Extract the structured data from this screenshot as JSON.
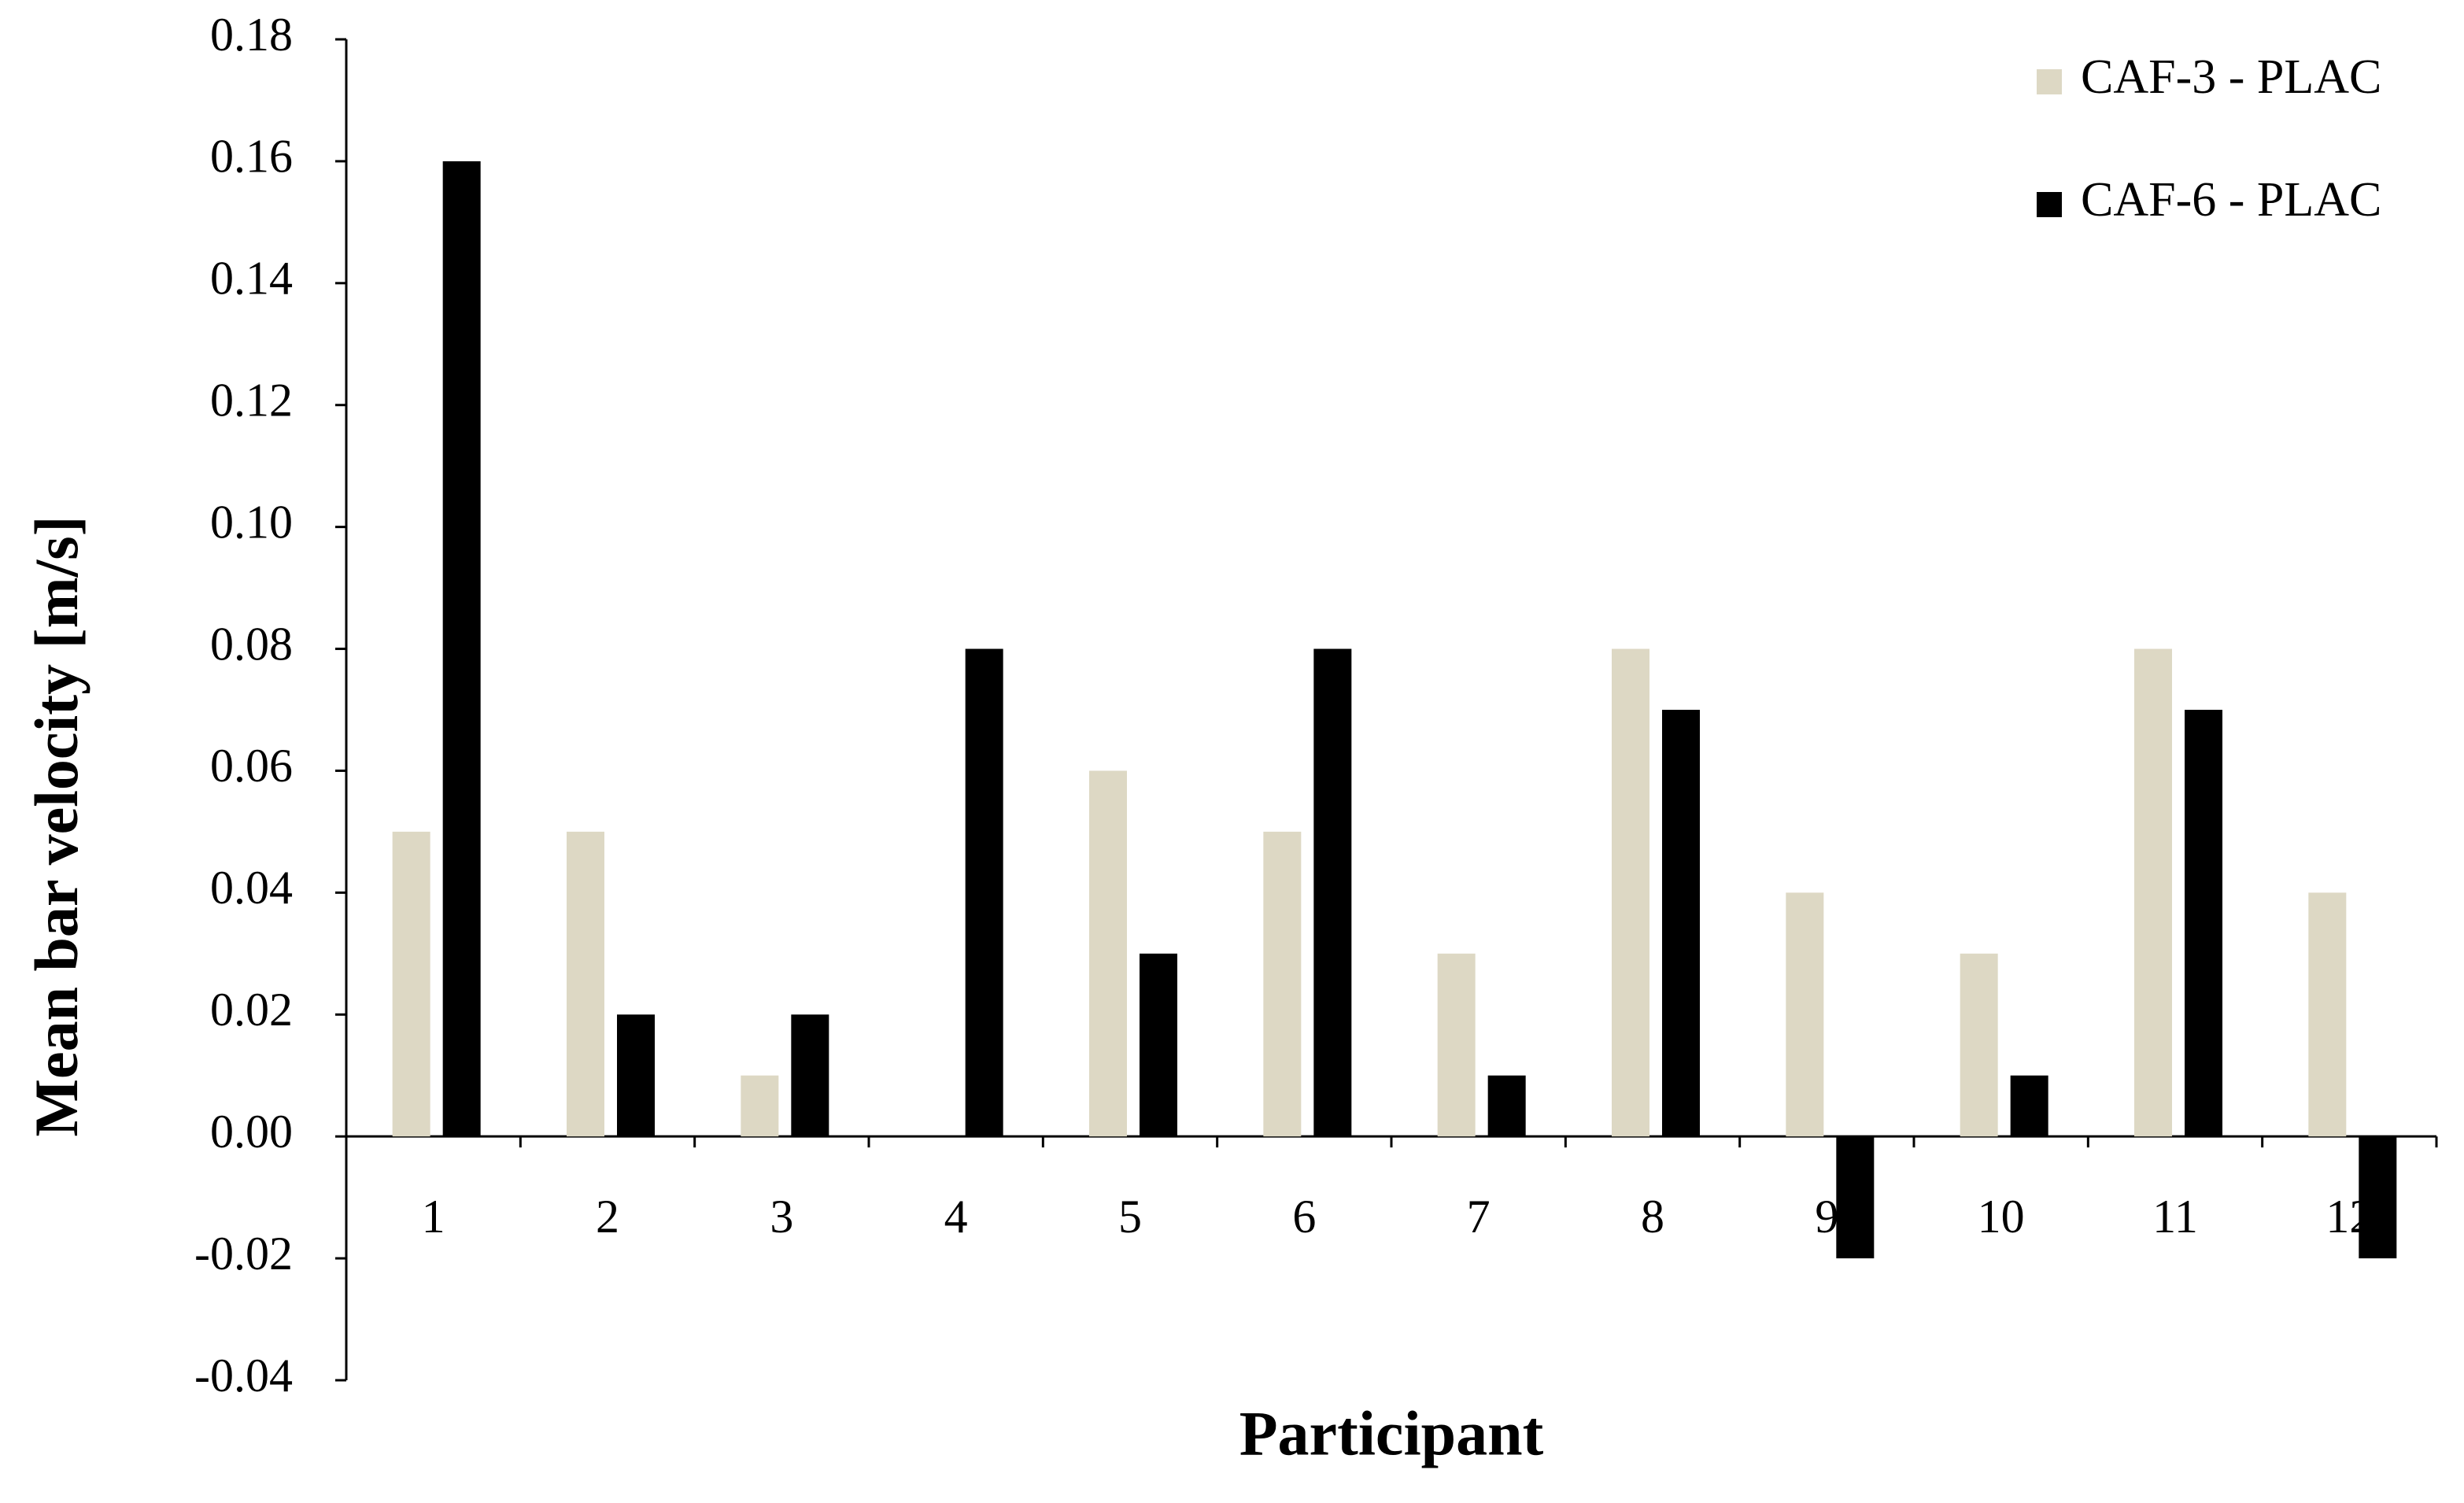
{
  "chart_data": {
    "type": "bar",
    "x_label": "Participant",
    "y_label": "Mean bar velocity [m/s]",
    "categories": [
      "1",
      "2",
      "3",
      "4",
      "5",
      "6",
      "7",
      "8",
      "9",
      "10",
      "11",
      "12"
    ],
    "series": [
      {
        "name": "CAF-3 - PLAC",
        "color": "#ddd8c4",
        "values": [
          0.05,
          0.05,
          0.01,
          0,
          0.06,
          0.05,
          0.03,
          0.08,
          0.04,
          0.03,
          0.08,
          0.04
        ]
      },
      {
        "name": "CAF-6 - PLAC",
        "color": "#000000",
        "values": [
          0.16,
          0.02,
          0.02,
          0.08,
          0.03,
          0.08,
          0.01,
          0.07,
          -0.02,
          0.01,
          0.07,
          -0.02
        ]
      }
    ],
    "ylim": [
      -0.04,
      0.18
    ],
    "yticks": [
      -0.04,
      -0.02,
      {
        "value": 0,
        "label": "0.00"
      },
      0.02,
      0.04,
      0.06,
      0.08,
      {
        "value": 0.1,
        "label": "0.10"
      },
      0.12,
      0.14,
      0.16,
      0.18
    ],
    "legend": "top-right"
  }
}
